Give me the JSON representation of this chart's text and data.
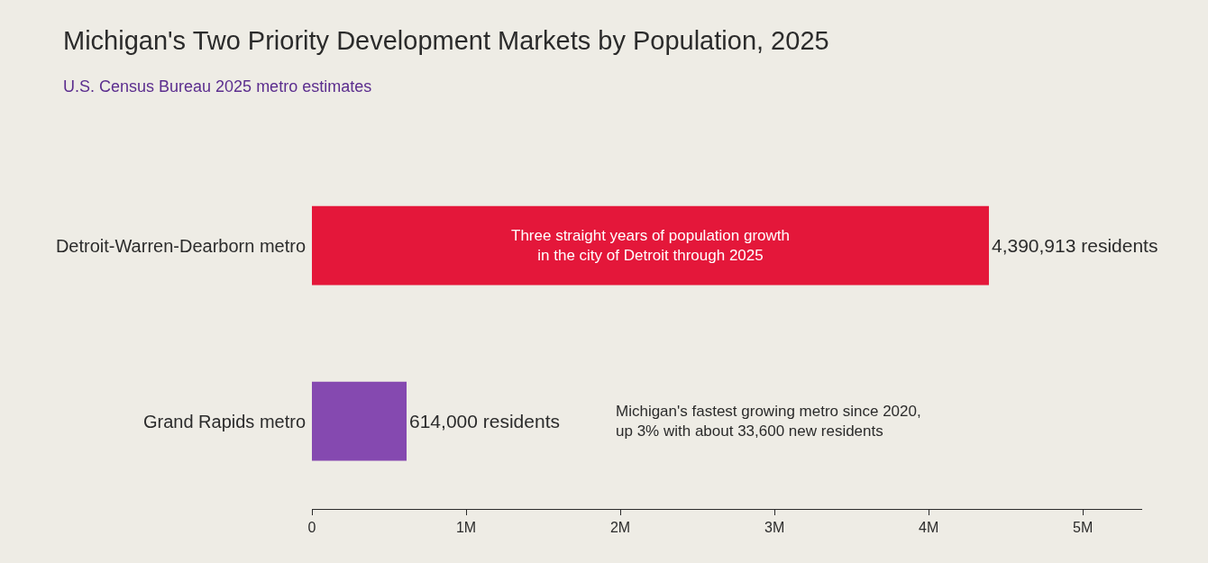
{
  "chart_data": {
    "type": "bar",
    "orientation": "horizontal",
    "title": "Michigan's Two Priority Development Markets by Population, 2025",
    "subtitle": "U.S. Census Bureau 2025 metro estimates",
    "categories": [
      "Detroit-Warren-Dearborn metro",
      "Grand Rapids metro"
    ],
    "values": [
      4390913,
      614000
    ],
    "colors": [
      "#e4173a",
      "#8549b0"
    ],
    "value_labels": [
      "4,390,913 residents",
      "614,000 residents"
    ],
    "xlim": [
      0,
      5385000
    ],
    "xticks": [
      0,
      {
        "value": 1000000,
        "label": "1M"
      },
      {
        "value": 2000000,
        "label": "2M"
      },
      {
        "value": 3000000,
        "label": "3M"
      },
      {
        "value": 4000000,
        "label": "4M"
      },
      {
        "value": 5000000,
        "label": "5M"
      }
    ],
    "annotations": [
      "Three straight years of population growth\nin the city of Detroit through 2025",
      "Michigan's fastest growing metro since 2020,\nup 3% with about 33,600 new residents"
    ],
    "grid": false,
    "legend": false
  }
}
